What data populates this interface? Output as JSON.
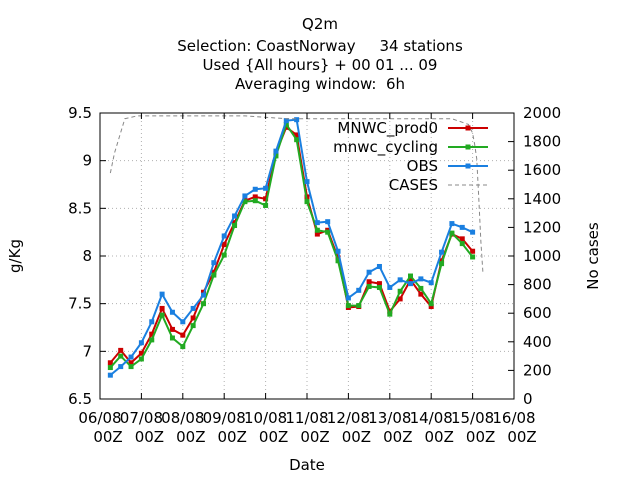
{
  "title_lines": [
    "Q2m",
    "Selection: CoastNorway     34 stations",
    "Used {All hours} + 00 01 ... 09",
    "Averaging window:  6h"
  ],
  "chart_data": {
    "type": "line",
    "xlabel": "Date",
    "ylabel": "g/Kg",
    "y2label": "No cases",
    "ylim": [
      6.5,
      9.5
    ],
    "y2lim": [
      0,
      2000
    ],
    "xlim": [
      "06/08 00Z",
      "16/08 00Z"
    ],
    "grid": true,
    "legend_position": "top-right",
    "x_ticks": [
      {
        "line1": "06/08",
        "line2": "00Z"
      },
      {
        "line1": "07/08",
        "line2": "00Z"
      },
      {
        "line1": "08/08",
        "line2": "00Z"
      },
      {
        "line1": "09/08",
        "line2": "00Z"
      },
      {
        "line1": "10/08",
        "line2": "00Z"
      },
      {
        "line1": "11/08",
        "line2": "00Z"
      },
      {
        "line1": "12/08",
        "line2": "00Z"
      },
      {
        "line1": "13/08",
        "line2": "00Z"
      },
      {
        "line1": "14/08",
        "line2": "00Z"
      },
      {
        "line1": "15/08",
        "line2": "00Z"
      },
      {
        "line1": "16/08",
        "line2": "00Z"
      }
    ],
    "y_ticks": [
      "6.5",
      "7",
      "7.5",
      "8",
      "8.5",
      "9",
      "9.5"
    ],
    "y2_ticks": [
      "0",
      "200",
      "400",
      "600",
      "800",
      "1000",
      "1200",
      "1400",
      "1600",
      "1800",
      "2000"
    ],
    "x_days": [
      0.25,
      0.5,
      0.75,
      1.0,
      1.25,
      1.5,
      1.75,
      2.0,
      2.25,
      2.5,
      2.75,
      3.0,
      3.25,
      3.5,
      3.75,
      4.0,
      4.25,
      4.5,
      4.75,
      5.0,
      5.25,
      5.5,
      5.75,
      6.0,
      6.25,
      6.5,
      6.75,
      7.0,
      7.25,
      7.5,
      7.75,
      8.0,
      8.25,
      8.5,
      8.75,
      9.0,
      9.25
    ],
    "series": [
      {
        "name": "MNWC_prod0",
        "color": "#cc0000",
        "marker": "circle",
        "values": [
          6.88,
          7.01,
          6.88,
          6.98,
          7.18,
          7.45,
          7.23,
          7.17,
          7.35,
          7.62,
          7.83,
          8.12,
          8.35,
          8.58,
          8.62,
          8.6,
          9.08,
          9.35,
          9.27,
          8.62,
          8.23,
          8.27,
          7.98,
          7.46,
          7.47,
          7.73,
          7.71,
          7.42,
          7.55,
          7.75,
          7.6,
          7.47,
          7.95,
          8.23,
          8.18,
          8.05,
          null
        ]
      },
      {
        "name": "mnwc_cycling",
        "color": "#22aa22",
        "marker": "circle",
        "values": [
          6.83,
          6.95,
          6.84,
          6.92,
          7.12,
          7.38,
          7.14,
          7.05,
          7.27,
          7.5,
          7.8,
          8.01,
          8.32,
          8.57,
          8.58,
          8.53,
          9.05,
          9.38,
          9.22,
          8.57,
          8.27,
          8.25,
          7.95,
          7.48,
          7.48,
          7.68,
          7.67,
          7.39,
          7.63,
          7.79,
          7.66,
          7.5,
          7.92,
          8.24,
          8.13,
          7.99,
          null
        ]
      },
      {
        "name": "OBS",
        "color": "#1a7fe0",
        "marker": "circle",
        "values": [
          6.75,
          6.84,
          6.94,
          7.09,
          7.31,
          7.6,
          7.41,
          7.31,
          7.45,
          7.59,
          7.93,
          8.21,
          8.42,
          8.63,
          8.7,
          8.71,
          9.1,
          9.42,
          9.43,
          8.78,
          8.35,
          8.36,
          8.05,
          7.56,
          7.64,
          7.83,
          7.89,
          7.67,
          7.75,
          7.71,
          7.76,
          7.72,
          8.04,
          8.34,
          8.3,
          8.25,
          null
        ]
      },
      {
        "name": "CASES",
        "color": "#888888",
        "dashed": true,
        "x_days": [
          0.25,
          0.35,
          0.6,
          0.9,
          1.5,
          2.5,
          3.5,
          4.5,
          5.0,
          5.5,
          6.0,
          7.0,
          8.0,
          8.5,
          8.9,
          9.0,
          9.05,
          9.1,
          9.15,
          9.2,
          9.25
        ],
        "values": [
          1580,
          1720,
          1960,
          1980,
          1980,
          1980,
          1980,
          1960,
          1960,
          1960,
          1960,
          1960,
          1960,
          1960,
          1920,
          1860,
          1780,
          1680,
          1400,
          1100,
          880
        ]
      }
    ]
  }
}
